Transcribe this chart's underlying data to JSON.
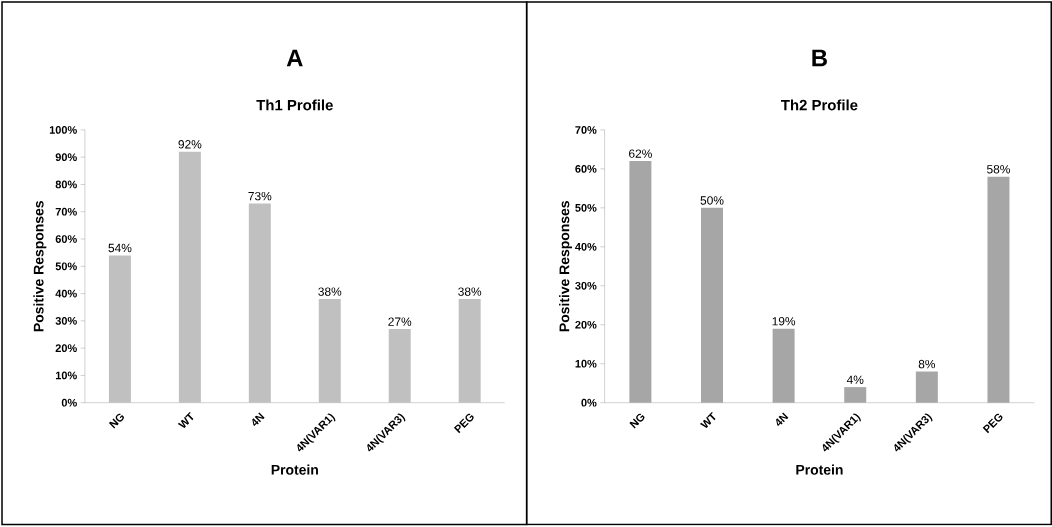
{
  "chart_data": [
    {
      "type": "bar",
      "title": "A",
      "subtitle": "Th1 Profile",
      "xlabel": "Protein",
      "ylabel": "Positive Responses",
      "categories": [
        "NG",
        "WT",
        "4N",
        "4N(VAR1)",
        "4N(VAR3)",
        "PEG"
      ],
      "values": [
        54,
        92,
        73,
        38,
        27,
        38
      ],
      "value_labels": [
        "54%",
        "92%",
        "73%",
        "38%",
        "27%",
        "38%"
      ],
      "color": "#c0c0c0",
      "ylim": [
        0,
        100
      ],
      "yticks": [
        {
          "value": 0,
          "label": "0%"
        },
        {
          "value": 10,
          "label": "10%"
        },
        {
          "value": 20,
          "label": "20%"
        },
        {
          "value": 30,
          "label": "30%"
        },
        {
          "value": 40,
          "label": "40%"
        },
        {
          "value": 50,
          "label": "50%"
        },
        {
          "value": 60,
          "label": "60%"
        },
        {
          "value": 70,
          "label": "70%"
        },
        {
          "value": 80,
          "label": "80%"
        },
        {
          "value": 90,
          "label": "90%"
        },
        {
          "value": 100,
          "label": "100%"
        }
      ]
    },
    {
      "type": "bar",
      "title": "B",
      "subtitle": "Th2 Profile",
      "xlabel": "Protein",
      "ylabel": "Positive Responses",
      "categories": [
        "NG",
        "WT",
        "4N",
        "4N(VAR1)",
        "4N(VAR3)",
        "PEG"
      ],
      "values": [
        62,
        50,
        19,
        4,
        8,
        58
      ],
      "value_labels": [
        "62%",
        "50%",
        "19%",
        "4%",
        "8%",
        "58%"
      ],
      "color": "#a6a6a6",
      "ylim": [
        0,
        70
      ],
      "yticks": [
        {
          "value": 0,
          "label": "0%"
        },
        {
          "value": 10,
          "label": "10%"
        },
        {
          "value": 20,
          "label": "20%"
        },
        {
          "value": 30,
          "label": "30%"
        },
        {
          "value": 40,
          "label": "40%"
        },
        {
          "value": 50,
          "label": "50%"
        },
        {
          "value": 60,
          "label": "60%"
        },
        {
          "value": 70,
          "label": "70%"
        }
      ]
    }
  ]
}
